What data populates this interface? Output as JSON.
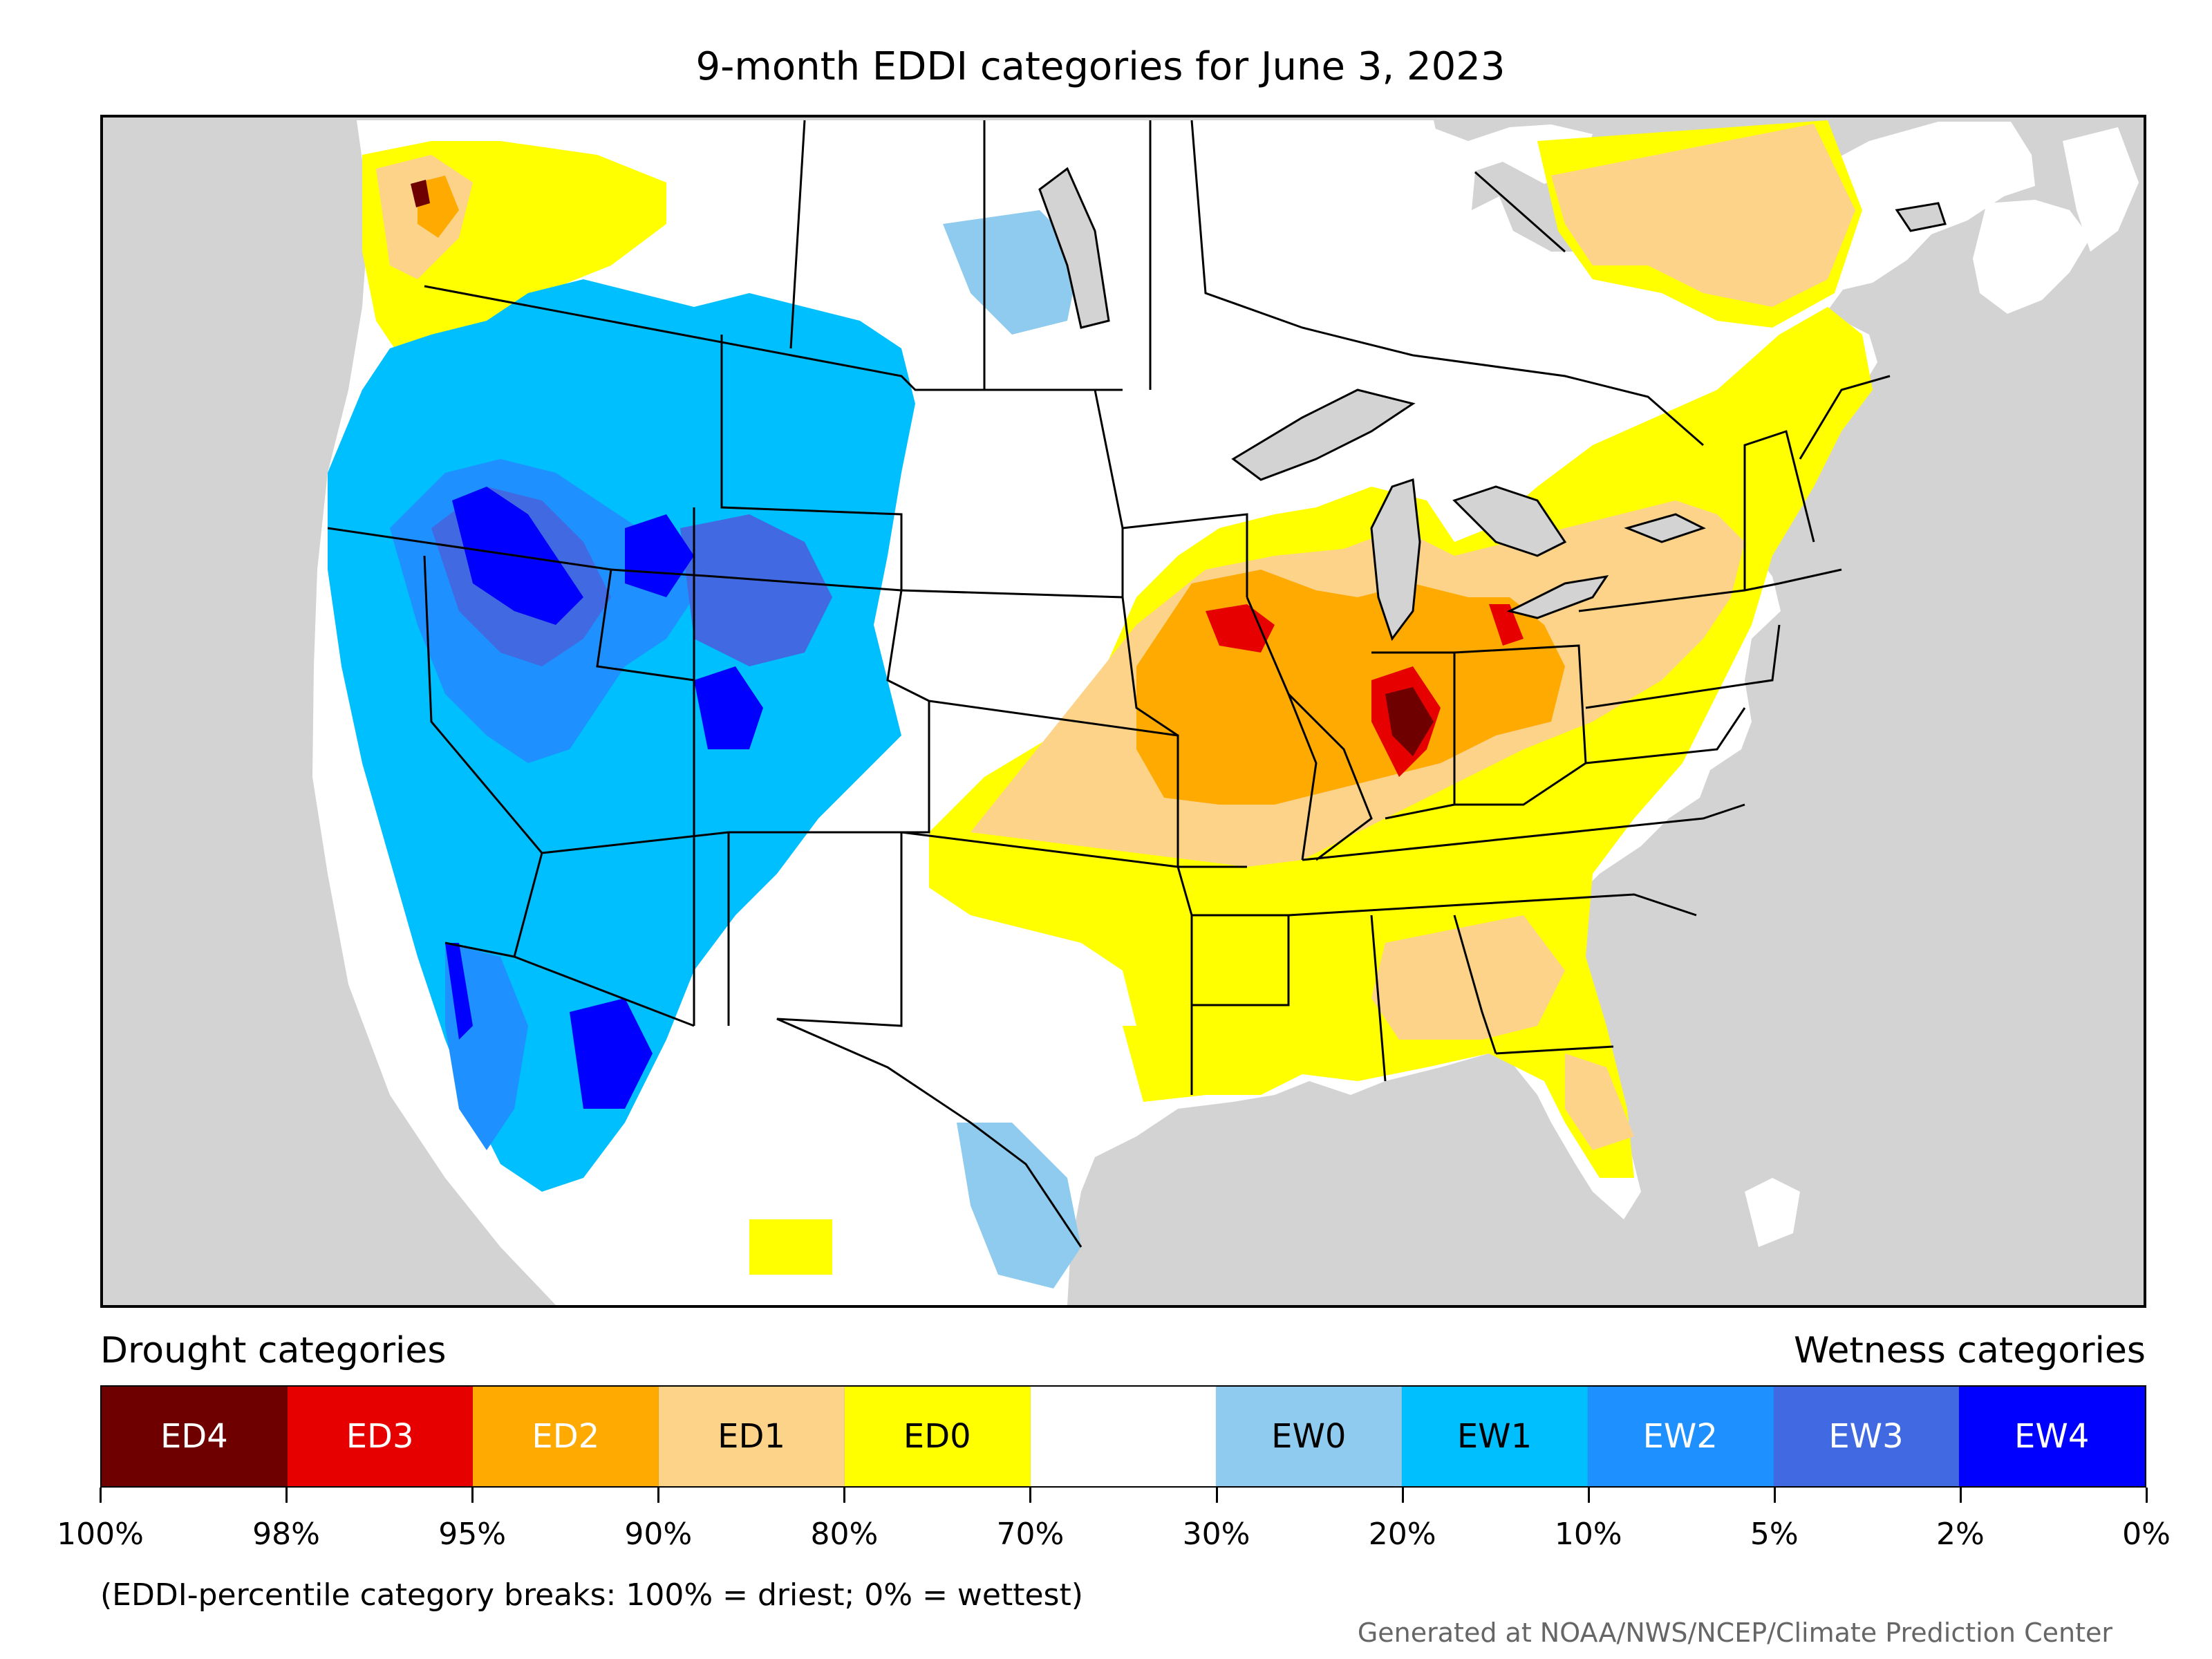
{
  "title": "9-month EDDI categories for June 3, 2023",
  "legend": {
    "drought_heading": "Drought categories",
    "wetness_heading": "Wetness categories",
    "categories": [
      {
        "label": "ED4",
        "color": "#6e0000",
        "text_color": "#ffffff"
      },
      {
        "label": "ED3",
        "color": "#e60000",
        "text_color": "#ffffff"
      },
      {
        "label": "ED2",
        "color": "#ffaa00",
        "text_color": "#ffffff"
      },
      {
        "label": "ED1",
        "color": "#fdd38a",
        "text_color": "#000000"
      },
      {
        "label": "ED0",
        "color": "#ffff00",
        "text_color": "#000000"
      },
      {
        "label": "",
        "color": "#ffffff",
        "text_color": "#000000"
      },
      {
        "label": "EW0",
        "color": "#8ecbee",
        "text_color": "#000000"
      },
      {
        "label": "EW1",
        "color": "#00bfff",
        "text_color": "#000000"
      },
      {
        "label": "EW2",
        "color": "#1e90ff",
        "text_color": "#ffffff"
      },
      {
        "label": "EW3",
        "color": "#4169e1",
        "text_color": "#ffffff"
      },
      {
        "label": "EW4",
        "color": "#0000ff",
        "text_color": "#ffffff"
      }
    ],
    "breaks": [
      "100%",
      "98%",
      "95%",
      "90%",
      "80%",
      "70%",
      "30%",
      "20%",
      "10%",
      "5%",
      "2%",
      "0%"
    ]
  },
  "breaks_note": "(EDDI-percentile category breaks: 100% = driest; 0% = wettest)",
  "credit": "Generated at NOAA/NWS/NCEP/Climate Prediction Center",
  "map": {
    "background_color": "#d3d3d3",
    "land_color": "#ffffff",
    "boundary_color": "#000000"
  }
}
